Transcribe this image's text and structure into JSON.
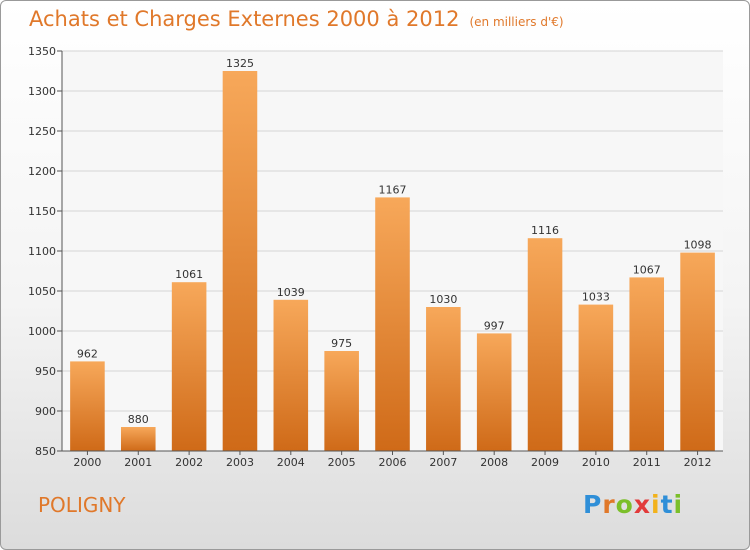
{
  "header": {
    "title": "Achats et Charges Externes 2000 à 2012",
    "unit": "(en milliers d'€)"
  },
  "footer": {
    "city": "POLIGNY",
    "logo": "Proxiti"
  },
  "colors": {
    "accent": "#e0782a",
    "bar_light": "#f7a85a",
    "bar_dark": "#cf6a18"
  },
  "chart_data": {
    "type": "bar",
    "categories": [
      "2000",
      "2001",
      "2002",
      "2003",
      "2004",
      "2005",
      "2006",
      "2007",
      "2008",
      "2009",
      "2010",
      "2011",
      "2012"
    ],
    "values": [
      962,
      880,
      1061,
      1325,
      1039,
      975,
      1167,
      1030,
      997,
      1116,
      1033,
      1067,
      1098
    ],
    "ylim": [
      850,
      1350
    ],
    "yticks": [
      850,
      900,
      950,
      1000,
      1050,
      1100,
      1150,
      1200,
      1250,
      1300,
      1350
    ],
    "grid": true
  }
}
